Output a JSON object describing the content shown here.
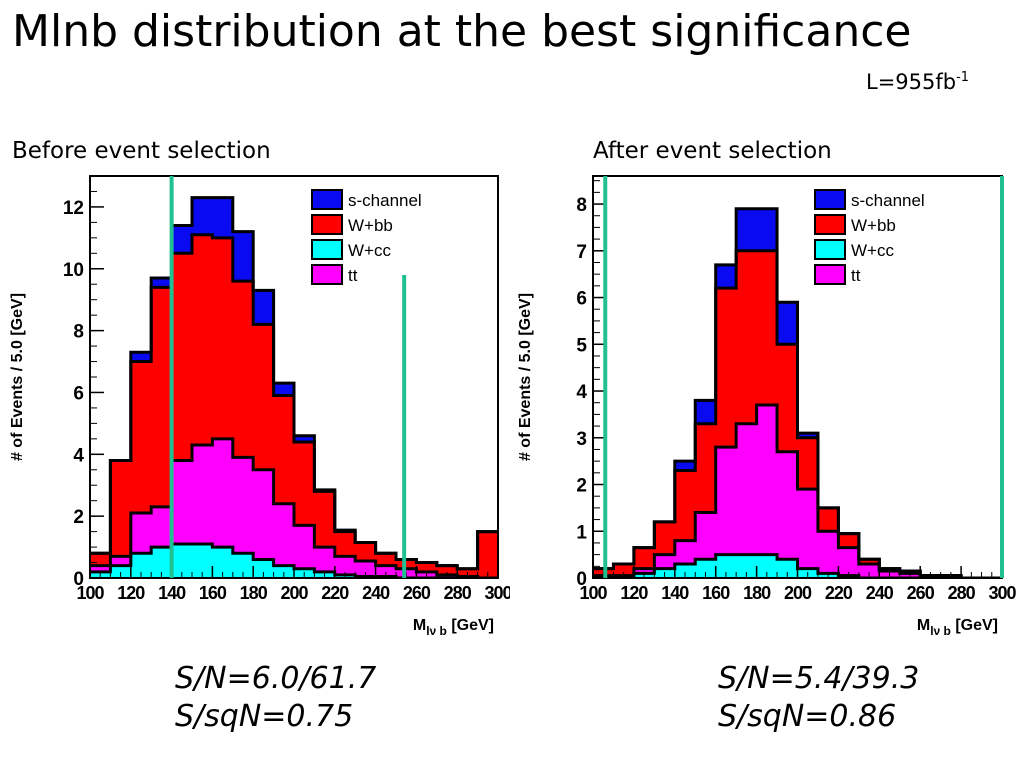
{
  "slide": {
    "title": "Mlnb distribution at the best significance",
    "luminosity": "L=955fb",
    "luminosity_sup": "-1",
    "left_label": "Before event selection",
    "right_label": "After event selection",
    "left_stats": [
      "S/N=6.0/61.7",
      "S/sqN=0.75"
    ],
    "right_stats": [
      "S/N=5.4/39.3",
      "S/sqN=0.86"
    ]
  },
  "colors": {
    "s-channel": "#0a0af0",
    "Wbb": "#ff0000",
    "Wcc": "#00ffff",
    "tt": "#ff00ff",
    "cut_line": "#20c090"
  },
  "chart_data": [
    {
      "type": "bar",
      "stacked": true,
      "ylabel": "# of Events / 5.0 [GeV]",
      "xlabel": "M",
      "xlabel_sub": "lν b",
      "xlabel_unit": "[GeV]",
      "x_tick_labels": [
        "100",
        "120",
        "140",
        "160",
        "180",
        "200",
        "220",
        "240",
        "260",
        "280",
        "300"
      ],
      "y_tick_labels": [
        "0",
        "2",
        "4",
        "6",
        "8",
        "10",
        "12"
      ],
      "xlim": [
        100,
        300
      ],
      "ylim": [
        0,
        13
      ],
      "bin_width": 10,
      "bin_edges_start": [
        100,
        110,
        120,
        130,
        140,
        150,
        160,
        170,
        180,
        190,
        200,
        210,
        220,
        230,
        240,
        250,
        260,
        270,
        280,
        290
      ],
      "legend": [
        "s-channel",
        "W+bb",
        "W+cc",
        "tt"
      ],
      "legend_position": "top-right",
      "cut_lines": [
        {
          "x": 140,
          "y_top": 13
        },
        {
          "x": 254,
          "y_top": 9.8
        }
      ],
      "series": [
        {
          "name": "W+cc",
          "color_key": "Wcc",
          "values": [
            0.2,
            0.4,
            0.8,
            1.0,
            1.1,
            1.1,
            1.0,
            0.8,
            0.6,
            0.4,
            0.3,
            0.2,
            0.1,
            0.05,
            0.05,
            0.0,
            0.0,
            0.0,
            0.0,
            0.0
          ]
        },
        {
          "name": "tt",
          "color_key": "tt",
          "values": [
            0.2,
            0.3,
            1.3,
            1.3,
            2.7,
            3.2,
            3.5,
            3.1,
            2.9,
            2.0,
            1.4,
            0.8,
            0.6,
            0.5,
            0.35,
            0.3,
            0.2,
            0.1,
            0.05,
            0.0
          ]
        },
        {
          "name": "W+bb",
          "color_key": "Wbb",
          "values": [
            0.4,
            3.1,
            4.9,
            7.1,
            6.7,
            6.8,
            6.5,
            5.7,
            4.7,
            3.5,
            2.7,
            1.8,
            0.8,
            0.6,
            0.4,
            0.3,
            0.3,
            0.3,
            0.25,
            1.5
          ]
        },
        {
          "name": "s-channel",
          "color_key": "s-channel",
          "values": [
            0.0,
            0.0,
            0.3,
            0.3,
            0.9,
            1.2,
            1.3,
            1.6,
            1.1,
            0.4,
            0.2,
            0.05,
            0.05,
            0.0,
            0.0,
            0.0,
            0.0,
            0.0,
            0.0,
            0.0
          ]
        }
      ]
    },
    {
      "type": "bar",
      "stacked": true,
      "ylabel": "# of Events / 5.0 [GeV]",
      "xlabel": "M",
      "xlabel_sub": "lν b",
      "xlabel_unit": "[GeV]",
      "x_tick_labels": [
        "100",
        "120",
        "140",
        "160",
        "180",
        "200",
        "220",
        "240",
        "260",
        "280",
        "300"
      ],
      "y_tick_labels": [
        "0",
        "1",
        "2",
        "3",
        "4",
        "5",
        "6",
        "7",
        "8"
      ],
      "xlim": [
        100,
        300
      ],
      "ylim": [
        0,
        8.6
      ],
      "bin_width": 10,
      "bin_edges_start": [
        100,
        110,
        120,
        130,
        140,
        150,
        160,
        170,
        180,
        190,
        200,
        210,
        220,
        230,
        240,
        250,
        260,
        270,
        280,
        290
      ],
      "legend": [
        "s-channel",
        "W+bb",
        "W+cc",
        "tt"
      ],
      "legend_position": "top-right",
      "cut_lines": [
        {
          "x": 106,
          "y_top": 8.6
        },
        {
          "x": 300,
          "y_top": 8.6
        }
      ],
      "series": [
        {
          "name": "W+cc",
          "color_key": "Wcc",
          "values": [
            0.0,
            0.0,
            0.1,
            0.2,
            0.3,
            0.4,
            0.5,
            0.5,
            0.5,
            0.4,
            0.2,
            0.1,
            0.05,
            0.0,
            0.0,
            0.0,
            0.0,
            0.0,
            0.0,
            0.0
          ]
        },
        {
          "name": "tt",
          "color_key": "tt",
          "values": [
            0.05,
            0.05,
            0.1,
            0.3,
            0.5,
            1.0,
            2.3,
            2.8,
            3.2,
            2.3,
            1.7,
            0.9,
            0.6,
            0.3,
            0.15,
            0.1,
            0.05,
            0.05,
            0.0,
            0.0
          ]
        },
        {
          "name": "W+bb",
          "color_key": "Wbb",
          "values": [
            0.15,
            0.25,
            0.45,
            0.7,
            1.5,
            1.9,
            3.4,
            3.7,
            3.3,
            2.3,
            1.1,
            0.5,
            0.3,
            0.1,
            0.05,
            0.05,
            0.0,
            0.0,
            0.0,
            0.0
          ]
        },
        {
          "name": "s-channel",
          "color_key": "s-channel",
          "values": [
            0.0,
            0.0,
            0.0,
            0.0,
            0.2,
            0.5,
            0.5,
            0.9,
            0.9,
            0.9,
            0.1,
            0.0,
            0.0,
            0.0,
            0.0,
            0.0,
            0.0,
            0.0,
            0.0,
            0.0
          ]
        }
      ]
    }
  ]
}
